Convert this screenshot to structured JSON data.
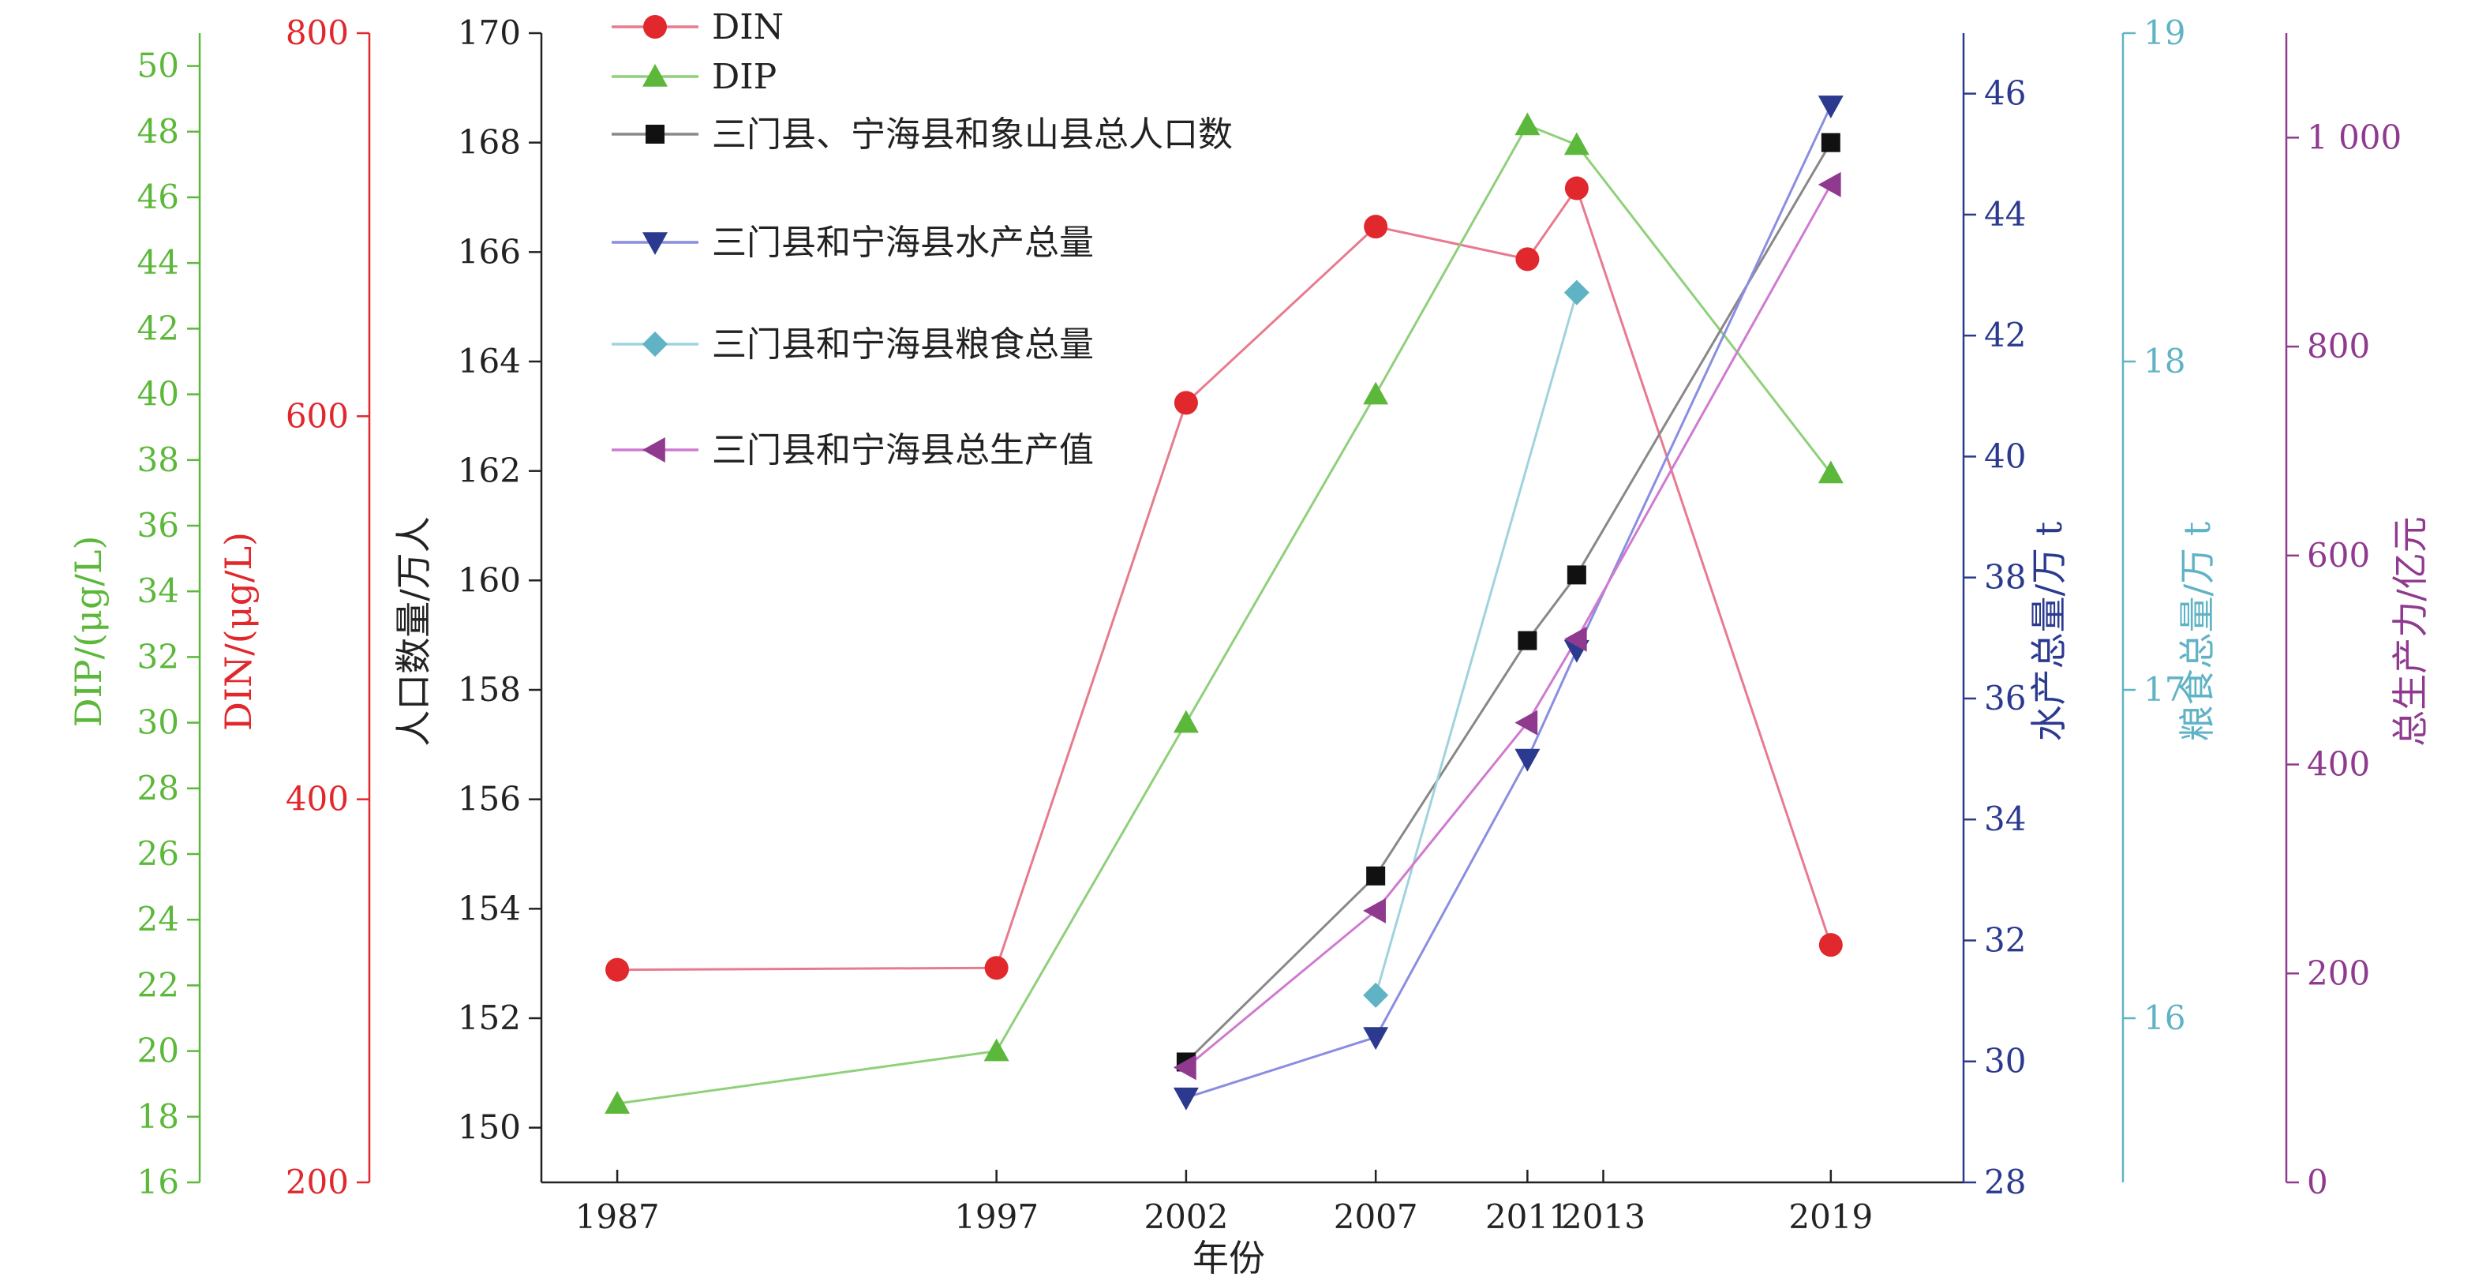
{
  "chart_data": {
    "type": "line",
    "xlabel": "年份",
    "x_ticks": [
      1987,
      1997,
      2002,
      2007,
      2011,
      2013,
      2019
    ],
    "xlim": [
      1985,
      2022.5
    ],
    "axes": {
      "pop": {
        "label": "人口数量/万人",
        "range": [
          149,
          170
        ],
        "ticks": [
          150,
          152,
          154,
          156,
          158,
          160,
          162,
          164,
          166,
          168,
          170
        ],
        "color": "#222222"
      },
      "din": {
        "label": "DIN/(μg/L)",
        "range": [
          200,
          800
        ],
        "ticks": [
          200,
          400,
          600,
          800
        ],
        "color": "#e0282d"
      },
      "dip": {
        "label": "DIP/(μg/L)",
        "range": [
          16,
          51
        ],
        "ticks": [
          16,
          18,
          20,
          22,
          24,
          26,
          28,
          30,
          32,
          34,
          36,
          38,
          40,
          42,
          44,
          46,
          48,
          50
        ],
        "color": "#5cb83a"
      },
      "aqua": {
        "label": "水产总量/万 t",
        "range": [
          28,
          47
        ],
        "ticks": [
          28,
          30,
          32,
          34,
          36,
          38,
          40,
          42,
          44,
          46
        ],
        "color": "#2b3a8f"
      },
      "grain": {
        "label": "粮食总量/万 t",
        "range": [
          15.5,
          19
        ],
        "ticks": [
          16,
          17,
          18,
          19
        ],
        "color": "#5fb3c4"
      },
      "gdp": {
        "label": "总生产力/亿元",
        "range": [
          0,
          1100
        ],
        "ticks": [
          0,
          200,
          400,
          600,
          800,
          1000
        ],
        "tick_labels": [
          "0",
          "200",
          "400",
          "600",
          "800",
          "1 000"
        ],
        "color": "#8f3a8f"
      }
    },
    "series": [
      {
        "name": "DIN",
        "axis": "din",
        "marker": "circle",
        "line_color": "#e87a8e",
        "marker_color": "#e0282d",
        "points": [
          [
            1987,
            311
          ],
          [
            1997,
            312
          ],
          [
            2002,
            607
          ],
          [
            2007,
            699
          ],
          [
            2011,
            682
          ],
          [
            2012.3,
            719
          ],
          [
            2019,
            324
          ]
        ]
      },
      {
        "name": "DIP",
        "axis": "dip",
        "marker": "triangle-up",
        "line_color": "#8fd07a",
        "marker_color": "#5cb83a",
        "points": [
          [
            1987,
            18.4
          ],
          [
            1997,
            20.0
          ],
          [
            2002,
            30.0
          ],
          [
            2007,
            40.0
          ],
          [
            2011,
            48.2
          ],
          [
            2012.3,
            47.6
          ],
          [
            2019,
            37.6
          ]
        ]
      },
      {
        "name": "三门县、宁海县和象山县总人口数",
        "axis": "pop",
        "marker": "square",
        "line_color": "#888888",
        "marker_color": "#111111",
        "points": [
          [
            2002,
            151.2
          ],
          [
            2007,
            154.6
          ],
          [
            2011,
            158.9
          ],
          [
            2012.3,
            160.1
          ],
          [
            2019,
            168.0
          ]
        ]
      },
      {
        "name": "三门县和宁海县水产总量",
        "axis": "aqua",
        "marker": "triangle-down",
        "line_color": "#8a8ee0",
        "marker_color": "#2b3a8f",
        "points": [
          [
            2002,
            29.4
          ],
          [
            2007,
            30.4
          ],
          [
            2011,
            35.0
          ],
          [
            2012.3,
            36.8
          ],
          [
            2019,
            45.8
          ]
        ]
      },
      {
        "name": "三门县和宁海县粮食总量",
        "axis": "grain",
        "marker": "diamond",
        "line_color": "#9fd3de",
        "marker_color": "#5fb3c4",
        "points": [
          [
            2007,
            16.07
          ],
          [
            2012.3,
            18.21
          ]
        ]
      },
      {
        "name": "三门县和宁海县总生产值",
        "axis": "gdp",
        "marker": "triangle-left",
        "line_color": "#d07ad0",
        "marker_color": "#8f3a8f",
        "points": [
          [
            2002,
            110
          ],
          [
            2007,
            260
          ],
          [
            2011,
            440
          ],
          [
            2012.3,
            520
          ],
          [
            2019,
            955
          ]
        ]
      }
    ],
    "legend_position": "top-left"
  }
}
